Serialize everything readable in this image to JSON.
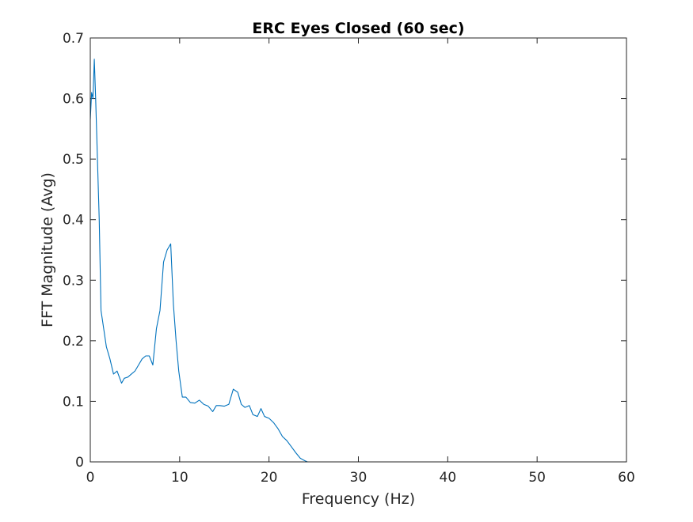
{
  "chart_data": {
    "type": "line",
    "title": "ERC Eyes Closed (60 sec)",
    "xlabel": "Frequency (Hz)",
    "ylabel": "FFT Magnitude (Avg)",
    "xlim": [
      0,
      60
    ],
    "ylim": [
      0,
      0.7
    ],
    "xticks": [
      0,
      10,
      20,
      30,
      40,
      50,
      60
    ],
    "yticks": [
      0,
      0.1,
      0.2,
      0.3,
      0.4,
      0.5,
      0.6,
      0.7
    ],
    "xtick_labels": [
      "0",
      "10",
      "20",
      "30",
      "40",
      "50",
      "60"
    ],
    "ytick_labels": [
      "0",
      "0.1",
      "0.2",
      "0.3",
      "0.4",
      "0.5",
      "0.6",
      "0.7"
    ],
    "grid": false,
    "series": [
      {
        "color": "#0072bd",
        "x": [
          0,
          0.15,
          0.3,
          0.45,
          0.6,
          0.8,
          1.0,
          1.2,
          1.5,
          1.8,
          2.2,
          2.6,
          3.0,
          3.5,
          3.8,
          4.2,
          4.6,
          5.0,
          5.4,
          5.8,
          6.2,
          6.6,
          7.0,
          7.4,
          7.8,
          8.2,
          8.6,
          9.0,
          9.3,
          9.6,
          9.9,
          10.3,
          10.7,
          11.2,
          11.7,
          12.2,
          12.7,
          13.2,
          13.7,
          14.1,
          14.5,
          15.0,
          15.5,
          16.0,
          16.5,
          16.9,
          17.3,
          17.8,
          18.2,
          18.7,
          19.1,
          19.5,
          20.0,
          20.5,
          21.0,
          21.5,
          22.0,
          22.5,
          23.0,
          23.5,
          24.0,
          24.3,
          24.6,
          25.0,
          25.5,
          26,
          30,
          40,
          50,
          60
        ],
        "y": [
          0.565,
          0.61,
          0.6,
          0.665,
          0.6,
          0.5,
          0.4,
          0.25,
          0.22,
          0.19,
          0.17,
          0.145,
          0.15,
          0.13,
          0.138,
          0.14,
          0.145,
          0.15,
          0.16,
          0.17,
          0.175,
          0.175,
          0.16,
          0.22,
          0.25,
          0.33,
          0.35,
          0.36,
          0.26,
          0.2,
          0.15,
          0.107,
          0.107,
          0.098,
          0.097,
          0.102,
          0.095,
          0.092,
          0.083,
          0.093,
          0.093,
          0.092,
          0.095,
          0.12,
          0.115,
          0.095,
          0.09,
          0.093,
          0.078,
          0.075,
          0.088,
          0.075,
          0.072,
          0.065,
          0.055,
          0.042,
          0.035,
          0.025,
          0.015,
          0.006,
          0.002,
          0.0,
          0.0,
          0.0,
          0.0,
          0.0,
          0.0,
          0.0,
          0.0,
          0.0
        ]
      }
    ]
  }
}
